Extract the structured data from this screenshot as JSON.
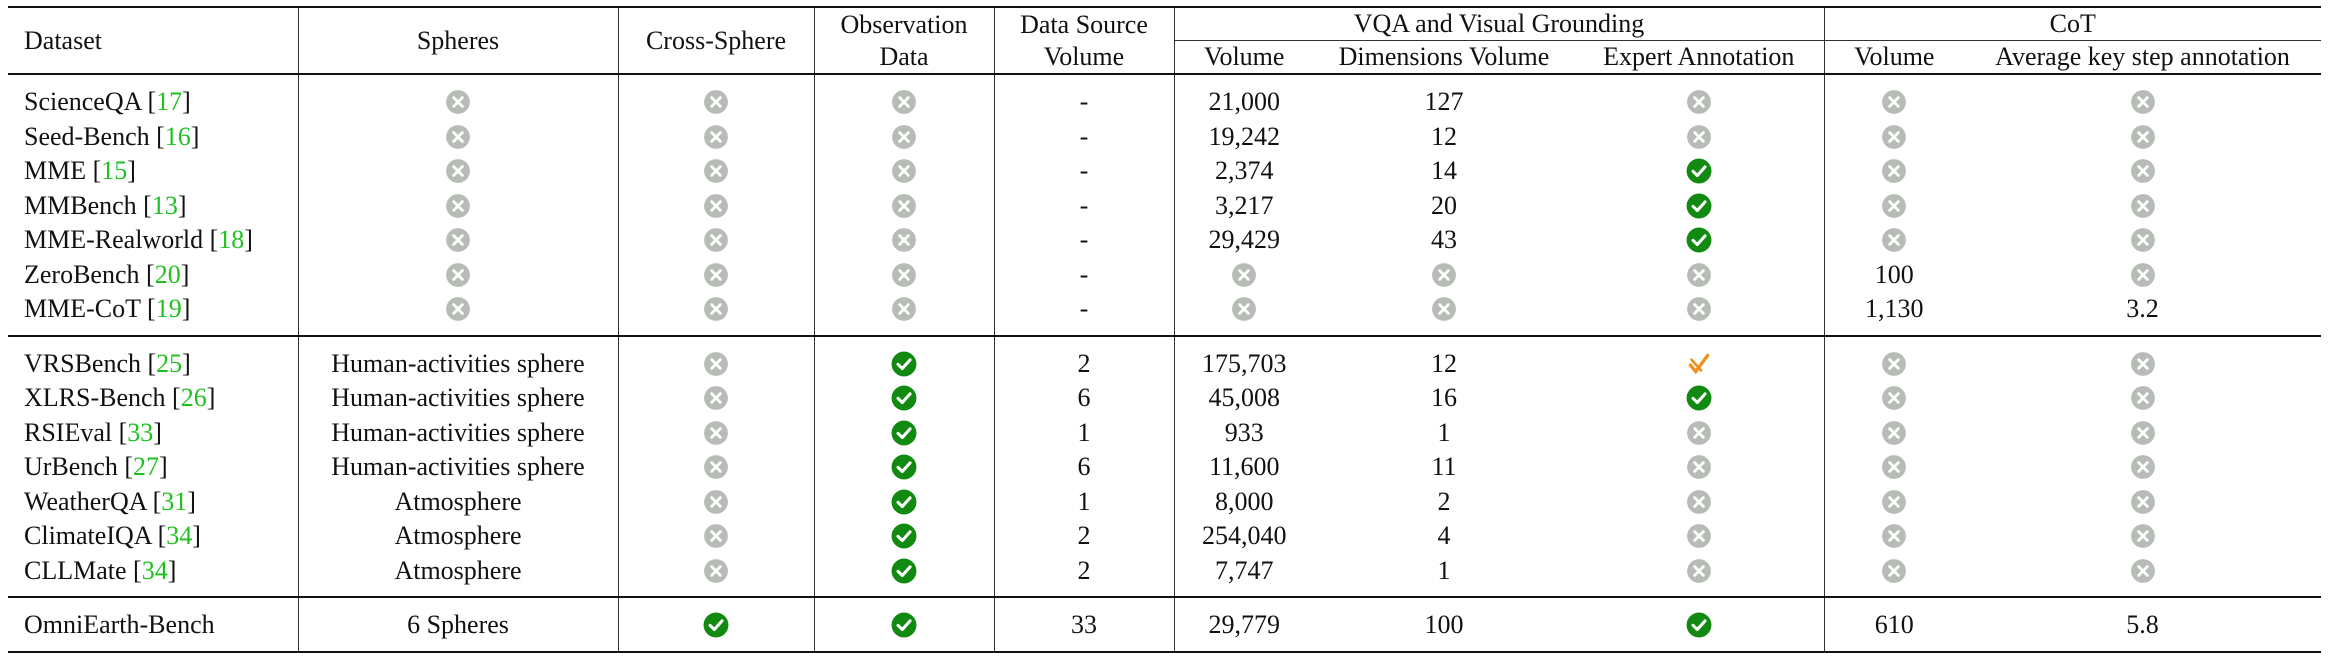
{
  "colors": {
    "cross": "#b7bcb7",
    "check": "#128a12",
    "partial": "#f0901a",
    "citation": "#1ec21e"
  },
  "icons": {
    "cross": "circle-x-icon",
    "check": "circle-check-icon",
    "partial": "orange-check-mark-icon"
  },
  "header": {
    "dataset": "Dataset",
    "spheres": "Spheres",
    "cross_sphere": "Cross-Sphere",
    "observation_1": "Observation",
    "observation_2": "Data",
    "data_source_1": "Data Source",
    "data_source_2": "Volume",
    "vqa_group": "VQA and Visual Grounding",
    "cot_group": "CoT",
    "vqa_volume": "Volume",
    "vqa_dimensions": "Dimensions Volume",
    "vqa_expert": "Expert Annotation",
    "cot_volume": "Volume",
    "cot_avg": "Average key step annotation"
  },
  "groups": [
    [
      {
        "name": "ScienceQA",
        "cite": "17",
        "spheres": "x",
        "cross": "x",
        "obs": "x",
        "src": "-",
        "vqa_vol": "21,000",
        "dims": "127",
        "expert": "x",
        "cot_vol": "x",
        "avg": "x"
      },
      {
        "name": "Seed-Bench",
        "cite": "16",
        "spheres": "x",
        "cross": "x",
        "obs": "x",
        "src": "-",
        "vqa_vol": "19,242",
        "dims": "12",
        "expert": "x",
        "cot_vol": "x",
        "avg": "x"
      },
      {
        "name": "MME",
        "cite": "15",
        "spheres": "x",
        "cross": "x",
        "obs": "x",
        "src": "-",
        "vqa_vol": "2,374",
        "dims": "14",
        "expert": "v",
        "cot_vol": "x",
        "avg": "x"
      },
      {
        "name": "MMBench",
        "cite": "13",
        "spheres": "x",
        "cross": "x",
        "obs": "x",
        "src": "-",
        "vqa_vol": "3,217",
        "dims": "20",
        "expert": "v",
        "cot_vol": "x",
        "avg": "x"
      },
      {
        "name": "MME-Realworld",
        "cite": "18",
        "spheres": "x",
        "cross": "x",
        "obs": "x",
        "src": "-",
        "vqa_vol": "29,429",
        "dims": "43",
        "expert": "v",
        "cot_vol": "x",
        "avg": "x"
      },
      {
        "name": "ZeroBench",
        "cite": "20",
        "spheres": "x",
        "cross": "x",
        "obs": "x",
        "src": "-",
        "vqa_vol": "x",
        "dims": "x",
        "expert": "x",
        "cot_vol": "100",
        "avg": "x"
      },
      {
        "name": "MME-CoT",
        "cite": "19",
        "spheres": "x",
        "cross": "x",
        "obs": "x",
        "src": "-",
        "vqa_vol": "x",
        "dims": "x",
        "expert": "x",
        "cot_vol": "1,130",
        "avg": "3.2"
      }
    ],
    [
      {
        "name": "VRSBench",
        "cite": "25",
        "spheres": "Human-activities sphere",
        "cross": "x",
        "obs": "v",
        "src": "2",
        "vqa_vol": "175,703",
        "dims": "12",
        "expert": "p",
        "cot_vol": "x",
        "avg": "x"
      },
      {
        "name": "XLRS-Bench",
        "cite": "26",
        "spheres": "Human-activities sphere",
        "cross": "x",
        "obs": "v",
        "src": "6",
        "vqa_vol": "45,008",
        "dims": "16",
        "expert": "v",
        "cot_vol": "x",
        "avg": "x"
      },
      {
        "name": "RSIEval",
        "cite": "33",
        "spheres": "Human-activities sphere",
        "cross": "x",
        "obs": "v",
        "src": "1",
        "vqa_vol": "933",
        "dims": "1",
        "expert": "x",
        "cot_vol": "x",
        "avg": "x"
      },
      {
        "name": "UrBench",
        "cite": "27",
        "spheres": "Human-activities sphere",
        "cross": "x",
        "obs": "v",
        "src": "6",
        "vqa_vol": "11,600",
        "dims": "11",
        "expert": "x",
        "cot_vol": "x",
        "avg": "x"
      },
      {
        "name": "WeatherQA",
        "cite": "31",
        "spheres": "Atmosphere",
        "cross": "x",
        "obs": "v",
        "src": "1",
        "vqa_vol": "8,000",
        "dims": "2",
        "expert": "x",
        "cot_vol": "x",
        "avg": "x"
      },
      {
        "name": "ClimateIQA",
        "cite": "34",
        "spheres": "Atmosphere",
        "cross": "x",
        "obs": "v",
        "src": "2",
        "vqa_vol": "254,040",
        "dims": "4",
        "expert": "x",
        "cot_vol": "x",
        "avg": "x"
      },
      {
        "name": "CLLMate",
        "cite": "34",
        "spheres": "Atmosphere",
        "cross": "x",
        "obs": "v",
        "src": "2",
        "vqa_vol": "7,747",
        "dims": "1",
        "expert": "x",
        "cot_vol": "x",
        "avg": "x"
      }
    ],
    [
      {
        "name": "OmniEarth-Bench",
        "cite": "",
        "spheres": "6 Spheres",
        "cross": "v",
        "obs": "v",
        "src": "33",
        "vqa_vol": "29,779",
        "dims": "100",
        "expert": "v",
        "cot_vol": "610",
        "avg": "5.8"
      }
    ]
  ]
}
